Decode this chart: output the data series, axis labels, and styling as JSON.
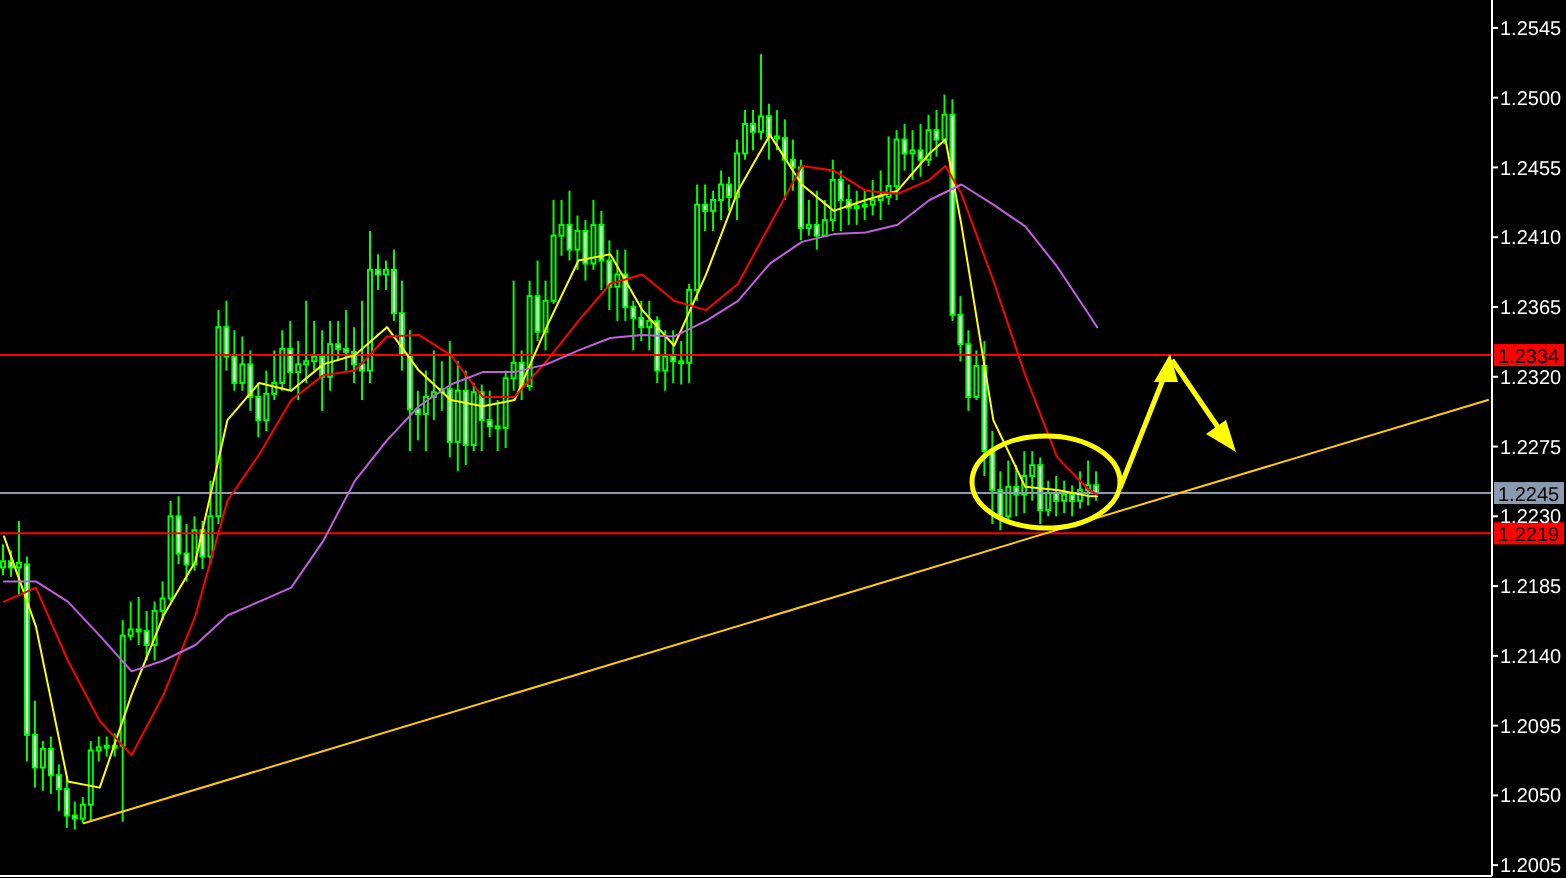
{
  "chart_data": {
    "type": "candlestick",
    "color": "#00ff00",
    "categories": [
      null,
      null,
      null,
      null,
      null,
      null,
      null,
      null,
      null,
      null,
      null,
      null,
      null,
      null,
      null,
      null,
      null,
      null,
      null,
      null,
      null,
      null,
      null,
      null,
      null,
      null,
      null,
      null,
      null,
      null,
      null,
      null,
      null,
      null,
      null,
      null,
      null,
      null,
      null,
      null,
      null,
      null,
      null,
      null,
      null,
      null,
      null,
      null,
      null,
      null,
      null,
      null,
      null,
      null,
      null,
      null,
      null,
      null,
      null,
      null,
      null,
      null,
      null,
      null,
      null,
      null,
      null,
      null,
      null,
      null,
      null,
      null,
      null,
      null,
      null,
      null,
      null,
      null,
      null,
      null,
      null,
      null,
      null,
      null,
      null,
      null,
      null,
      null,
      null,
      null,
      null,
      null,
      null,
      null,
      null,
      null,
      null,
      null,
      null,
      null,
      null,
      null,
      null,
      null,
      null,
      null,
      null,
      null,
      null,
      null,
      null,
      null,
      null,
      null,
      null,
      null,
      null,
      null,
      null,
      null,
      null,
      null,
      null,
      null,
      null,
      null,
      null,
      null,
      null,
      null,
      null,
      null,
      null,
      null,
      null,
      null,
      null,
      null,
      null,
      null,
      null,
      null,
      null,
      null,
      null,
      null,
      null,
      null,
      null,
      null,
      null,
      null,
      null,
      null,
      null,
      null,
      null,
      null,
      null,
      null,
      null,
      null,
      null,
      null,
      null,
      null,
      null,
      null,
      null,
      null,
      null,
      null,
      null,
      null,
      null,
      null,
      null,
      null,
      null,
      null,
      null,
      null,
      null,
      null,
      null,
      null,
      null
    ],
    "ohlc": [
      [
        1.2197,
        1.2212,
        1.2192,
        1.2201
      ],
      [
        1.2201,
        1.2208,
        1.2191,
        1.2197
      ],
      [
        1.2197,
        1.2227,
        1.2179,
        1.22
      ],
      [
        1.2199,
        1.2204,
        1.2072,
        1.2089
      ],
      [
        1.2089,
        1.2111,
        1.2055,
        1.2068
      ],
      [
        1.2068,
        1.2085,
        1.2053,
        1.208
      ],
      [
        1.208,
        1.2088,
        1.2051,
        1.2063
      ],
      [
        1.2063,
        1.207,
        1.204,
        1.2054
      ],
      [
        1.2054,
        1.2062,
        1.2029,
        1.2037
      ],
      [
        1.2037,
        1.2046,
        1.2028,
        1.2035
      ],
      [
        1.2035,
        1.2049,
        1.2032,
        1.2044
      ],
      [
        1.2044,
        1.2085,
        1.2033,
        1.2079
      ],
      [
        1.2079,
        1.2088,
        1.2072,
        1.2081
      ],
      [
        1.2081,
        1.2088,
        1.2075,
        1.2082
      ],
      [
        1.2082,
        1.209,
        1.2075,
        1.2082
      ],
      [
        1.2082,
        1.2163,
        1.2033,
        1.2153
      ],
      [
        1.2153,
        1.2175,
        1.215,
        1.2157
      ],
      [
        1.2157,
        1.2178,
        1.2147,
        1.2156
      ],
      [
        1.2156,
        1.2169,
        1.2137,
        1.2147
      ],
      [
        1.2147,
        1.2175,
        1.2137,
        1.2169
      ],
      [
        1.2169,
        1.2188,
        1.2163,
        1.2177
      ],
      [
        1.2177,
        1.224,
        1.2175,
        1.223
      ],
      [
        1.223,
        1.2243,
        1.2199,
        1.2206
      ],
      [
        1.2206,
        1.2225,
        1.2188,
        1.2199
      ],
      [
        1.2199,
        1.223,
        1.2195,
        1.2221
      ],
      [
        1.2221,
        1.2227,
        1.2196,
        1.2204
      ],
      [
        1.2204,
        1.2253,
        1.2199,
        1.223
      ],
      [
        1.223,
        1.2363,
        1.2225,
        1.2352
      ],
      [
        1.2352,
        1.2369,
        1.2324,
        1.2333
      ],
      [
        1.2333,
        1.235,
        1.2311,
        1.2316
      ],
      [
        1.2316,
        1.2346,
        1.2311,
        1.2328
      ],
      [
        1.2328,
        1.2337,
        1.2298,
        1.2307
      ],
      [
        1.2307,
        1.2316,
        1.2281,
        1.2292
      ],
      [
        1.2292,
        1.2324,
        1.2285,
        1.2309
      ],
      [
        1.2309,
        1.2337,
        1.2305,
        1.2316
      ],
      [
        1.2316,
        1.235,
        1.2311,
        1.2338
      ],
      [
        1.2338,
        1.2356,
        1.2311,
        1.2323
      ],
      [
        1.2323,
        1.2343,
        1.2305,
        1.2328
      ],
      [
        1.2328,
        1.2369,
        1.2316,
        1.233
      ],
      [
        1.233,
        1.2356,
        1.2324,
        1.2333
      ],
      [
        1.2333,
        1.235,
        1.2298,
        1.232
      ],
      [
        1.232,
        1.2356,
        1.2311,
        1.2341
      ],
      [
        1.2341,
        1.2356,
        1.233,
        1.2338
      ],
      [
        1.2338,
        1.2363,
        1.2324,
        1.2336
      ],
      [
        1.2336,
        1.2352,
        1.2316,
        1.2328
      ],
      [
        1.2328,
        1.2369,
        1.2305,
        1.2324
      ],
      [
        1.2324,
        1.2414,
        1.2316,
        1.2389
      ],
      [
        1.2389,
        1.2399,
        1.2376,
        1.2386
      ],
      [
        1.2386,
        1.2395,
        1.2376,
        1.2389
      ],
      [
        1.2389,
        1.2402,
        1.2356,
        1.2361
      ],
      [
        1.2361,
        1.2382,
        1.2324,
        1.2334
      ],
      [
        1.2334,
        1.235,
        1.2272,
        1.2299
      ],
      [
        1.2299,
        1.2311,
        1.2279,
        1.2296
      ],
      [
        1.2296,
        1.2324,
        1.2272,
        1.2307
      ],
      [
        1.2307,
        1.2337,
        1.2292,
        1.231
      ],
      [
        1.231,
        1.233,
        1.2298,
        1.2312
      ],
      [
        1.2312,
        1.2343,
        1.2268,
        1.2278
      ],
      [
        1.2278,
        1.233,
        1.2259,
        1.2311
      ],
      [
        1.2311,
        1.2324,
        1.2263,
        1.2276
      ],
      [
        1.2276,
        1.2316,
        1.2272,
        1.231
      ],
      [
        1.231,
        1.2315,
        1.2272,
        1.2292
      ],
      [
        1.2292,
        1.2311,
        1.2281,
        1.2288
      ],
      [
        1.2288,
        1.2305,
        1.2272,
        1.2287
      ],
      [
        1.2287,
        1.2324,
        1.2274,
        1.2319
      ],
      [
        1.2319,
        1.2382,
        1.2311,
        1.2329
      ],
      [
        1.2329,
        1.2337,
        1.2305,
        1.2314
      ],
      [
        1.2314,
        1.2382,
        1.2311,
        1.2372
      ],
      [
        1.2372,
        1.2395,
        1.2343,
        1.2349
      ],
      [
        1.2349,
        1.2382,
        1.2337,
        1.2369
      ],
      [
        1.2369,
        1.2434,
        1.2367,
        1.2411
      ],
      [
        1.2411,
        1.2434,
        1.2398,
        1.2418
      ],
      [
        1.2418,
        1.244,
        1.2395,
        1.2402
      ],
      [
        1.2402,
        1.2424,
        1.2389,
        1.2414
      ],
      [
        1.2414,
        1.2421,
        1.2382,
        1.2393
      ],
      [
        1.2393,
        1.2434,
        1.2389,
        1.2418
      ],
      [
        1.2418,
        1.2427,
        1.2376,
        1.2395
      ],
      [
        1.2395,
        1.2408,
        1.2363,
        1.2378
      ],
      [
        1.2378,
        1.2402,
        1.2356,
        1.2386
      ],
      [
        1.2386,
        1.2402,
        1.2356,
        1.2365
      ],
      [
        1.2365,
        1.2369,
        1.2337,
        1.2358
      ],
      [
        1.2358,
        1.2369,
        1.2343,
        1.2352
      ],
      [
        1.2352,
        1.2369,
        1.2337,
        1.2356
      ],
      [
        1.2356,
        1.2359,
        1.2316,
        1.2324
      ],
      [
        1.2324,
        1.235,
        1.2311,
        1.2333
      ],
      [
        1.2333,
        1.235,
        1.2316,
        1.233
      ],
      [
        1.233,
        1.2343,
        1.2315,
        1.2329
      ],
      [
        1.2329,
        1.238,
        1.2316,
        1.2376
      ],
      [
        1.2376,
        1.2444,
        1.2369,
        1.2431
      ],
      [
        1.2431,
        1.2444,
        1.2414,
        1.2427
      ],
      [
        1.2427,
        1.244,
        1.2414,
        1.2434
      ],
      [
        1.2434,
        1.2453,
        1.2421,
        1.2444
      ],
      [
        1.2444,
        1.2449,
        1.2427,
        1.2436
      ],
      [
        1.2436,
        1.2473,
        1.2421,
        1.2464
      ],
      [
        1.2464,
        1.2492,
        1.246,
        1.2483
      ],
      [
        1.2483,
        1.2492,
        1.2466,
        1.2478
      ],
      [
        1.2478,
        1.2528,
        1.2473,
        1.2488
      ],
      [
        1.2488,
        1.2496,
        1.246,
        1.2475
      ],
      [
        1.2475,
        1.2492,
        1.2466,
        1.2474
      ],
      [
        1.2474,
        1.2486,
        1.2434,
        1.246
      ],
      [
        1.246,
        1.2473,
        1.244,
        1.2455
      ],
      [
        1.2455,
        1.246,
        1.2408,
        1.2416
      ],
      [
        1.2416,
        1.2434,
        1.2411,
        1.2418
      ],
      [
        1.2418,
        1.244,
        1.2402,
        1.2411
      ],
      [
        1.2411,
        1.2434,
        1.2411,
        1.2421
      ],
      [
        1.2421,
        1.246,
        1.2414,
        1.2447
      ],
      [
        1.2447,
        1.2453,
        1.2414,
        1.2434
      ],
      [
        1.2434,
        1.2444,
        1.2418,
        1.2429
      ],
      [
        1.2429,
        1.244,
        1.2418,
        1.243
      ],
      [
        1.243,
        1.244,
        1.2421,
        1.2431
      ],
      [
        1.2431,
        1.2447,
        1.2424,
        1.2434
      ],
      [
        1.2434,
        1.2453,
        1.2421,
        1.2436
      ],
      [
        1.2436,
        1.2475,
        1.2431,
        1.2443
      ],
      [
        1.2443,
        1.2479,
        1.2434,
        1.2473
      ],
      [
        1.2473,
        1.2483,
        1.2453,
        1.2464
      ],
      [
        1.2464,
        1.2479,
        1.2447,
        1.2466
      ],
      [
        1.2466,
        1.2483,
        1.2449,
        1.246
      ],
      [
        1.246,
        1.2489,
        1.2456,
        1.2479
      ],
      [
        1.2479,
        1.2492,
        1.2462,
        1.2473
      ],
      [
        1.2473,
        1.2502,
        1.247,
        1.2489
      ],
      [
        1.2489,
        1.2499,
        1.2356,
        1.236
      ],
      [
        1.236,
        1.2372,
        1.233,
        1.2341
      ],
      [
        1.2341,
        1.235,
        1.2298,
        1.2307
      ],
      [
        1.2307,
        1.2337,
        1.2305,
        1.2327
      ],
      [
        1.2327,
        1.2343,
        1.2256,
        1.2272
      ],
      [
        1.2272,
        1.2285,
        1.2225,
        1.2247
      ],
      [
        1.2247,
        1.2259,
        1.2221,
        1.223
      ],
      [
        1.223,
        1.2266,
        1.2225,
        1.2249
      ],
      [
        1.2249,
        1.2263,
        1.223,
        1.2244
      ],
      [
        1.2244,
        1.2272,
        1.2232,
        1.2256
      ],
      [
        1.2256,
        1.2272,
        1.224,
        1.2263
      ],
      [
        1.2263,
        1.2268,
        1.2225,
        1.2234
      ],
      [
        1.2234,
        1.2253,
        1.223,
        1.2245
      ],
      [
        1.2245,
        1.2256,
        1.223,
        1.224
      ],
      [
        1.224,
        1.2253,
        1.2232,
        1.2244
      ],
      [
        1.2244,
        1.225,
        1.223,
        1.224
      ],
      [
        1.224,
        1.2259,
        1.2235,
        1.2247
      ],
      [
        1.2247,
        1.2266,
        1.2237,
        1.225
      ],
      [
        1.225,
        1.2259,
        1.224,
        1.2245
      ],
      null,
      null,
      null,
      null,
      null,
      null,
      null,
      null,
      null,
      null,
      null,
      null,
      null,
      null,
      null,
      null,
      null,
      null,
      null,
      null,
      null,
      null,
      null,
      null,
      null,
      null,
      null,
      null,
      null,
      null,
      null,
      null,
      null,
      null,
      null,
      null,
      null,
      null,
      null,
      null,
      null,
      null,
      null,
      null,
      null,
      null,
      null,
      null,
      null
    ],
    "series": [
      {
        "type": "line",
        "color": "#ffff00",
        "values": [
          1.2217,
          null,
          null,
          null,
          1.2159,
          null,
          null,
          null,
          1.2059,
          null,
          null,
          null,
          1.2055,
          null,
          null,
          null,
          1.2115,
          null,
          null,
          null,
          1.2166,
          null,
          null,
          null,
          1.2201,
          null,
          null,
          null,
          1.2292,
          null,
          null,
          null,
          1.2316,
          null,
          null,
          null,
          1.2311,
          null,
          null,
          null,
          1.2328,
          null,
          null,
          null,
          1.2334,
          null,
          null,
          null,
          1.2352,
          null,
          null,
          null,
          1.2324,
          null,
          null,
          null,
          1.2305,
          null,
          null,
          null,
          1.2301,
          null,
          null,
          null,
          1.2305,
          null,
          null,
          null,
          1.2352,
          null,
          null,
          null,
          1.2395,
          null,
          null,
          null,
          1.2399,
          null,
          null,
          null,
          1.2363,
          null,
          null,
          null,
          1.234,
          null,
          null,
          null,
          1.2386,
          null,
          null,
          null,
          1.244,
          null,
          null,
          null,
          1.2476,
          null,
          null,
          null,
          1.2444,
          null,
          null,
          null,
          1.2427,
          null,
          null,
          null,
          1.2434,
          null,
          null,
          null,
          1.244,
          null,
          null,
          null,
          1.2464,
          null,
          1.2473,
          null,
          1.2418,
          null,
          null,
          null,
          1.2292,
          null,
          null,
          null,
          1.2249,
          null,
          null,
          null,
          1.2247,
          null,
          null,
          null,
          1.2243,
          1.2243,
          null,
          null,
          null,
          null,
          null,
          null,
          null,
          null,
          null,
          null,
          null,
          null,
          null,
          null,
          null,
          null,
          null,
          null,
          null,
          null,
          null,
          null,
          null,
          null,
          null,
          null,
          null,
          null,
          null,
          null,
          null,
          null,
          null,
          null,
          null,
          null,
          null,
          null,
          null,
          null,
          null,
          null,
          null,
          null,
          null,
          null,
          null,
          null,
          null
        ]
      },
      {
        "type": "line",
        "color": "#ff0000",
        "values": [
          1.2175,
          null,
          null,
          null,
          1.2184,
          null,
          null,
          null,
          1.2137,
          null,
          null,
          null,
          1.2098,
          null,
          null,
          null,
          1.2076,
          null,
          null,
          null,
          1.2115,
          null,
          null,
          null,
          1.2166,
          null,
          null,
          null,
          1.224,
          null,
          null,
          null,
          1.227,
          null,
          null,
          null,
          1.2305,
          null,
          null,
          null,
          1.2321,
          null,
          null,
          null,
          1.2324,
          null,
          null,
          null,
          1.2346,
          null,
          null,
          null,
          1.2347,
          null,
          null,
          null,
          1.2334,
          null,
          null,
          null,
          1.2307,
          null,
          null,
          null,
          1.2307,
          null,
          null,
          null,
          1.233,
          null,
          null,
          null,
          1.2356,
          null,
          null,
          null,
          1.238,
          null,
          null,
          null,
          1.2386,
          null,
          null,
          null,
          1.2369,
          null,
          null,
          null,
          1.2363,
          null,
          null,
          null,
          1.238,
          null,
          null,
          null,
          1.2418,
          null,
          null,
          null,
          1.2456,
          null,
          null,
          null,
          1.2453,
          null,
          null,
          null,
          1.244,
          null,
          null,
          null,
          1.2438,
          null,
          null,
          null,
          1.2447,
          null,
          1.2456,
          null,
          1.2438,
          null,
          null,
          null,
          1.2382,
          null,
          null,
          null,
          1.2321,
          null,
          null,
          null,
          1.2268,
          null,
          null,
          null,
          1.2247,
          1.2244,
          null,
          null,
          null,
          null,
          null,
          null,
          null,
          null,
          null,
          null,
          null,
          null,
          null,
          null,
          null,
          null,
          null,
          null,
          null,
          null,
          null,
          null,
          null,
          null,
          null,
          null,
          null,
          null,
          null,
          null,
          null,
          null,
          null,
          null,
          null,
          null,
          null,
          null,
          null,
          null,
          null,
          null,
          null,
          null,
          null,
          null,
          null,
          null,
          null
        ]
      },
      {
        "type": "line",
        "color": "#c060e0",
        "values": [
          1.2188,
          null,
          null,
          null,
          1.2188,
          null,
          null,
          null,
          1.2175,
          null,
          null,
          null,
          1.2153,
          null,
          null,
          null,
          1.213,
          null,
          null,
          null,
          1.2137,
          null,
          null,
          null,
          1.2147,
          null,
          null,
          null,
          1.2166,
          null,
          null,
          null,
          1.2175,
          null,
          null,
          null,
          1.2184,
          null,
          null,
          null,
          1.2214,
          null,
          null,
          null,
          1.2253,
          null,
          null,
          null,
          1.2279,
          null,
          null,
          null,
          1.2301,
          null,
          null,
          null,
          1.2315,
          null,
          null,
          null,
          1.2323,
          null,
          null,
          null,
          1.2323,
          null,
          null,
          null,
          1.2328,
          null,
          null,
          null,
          1.2337,
          null,
          null,
          null,
          1.2345,
          null,
          null,
          null,
          1.2347,
          null,
          null,
          null,
          1.2346,
          null,
          null,
          null,
          1.2356,
          null,
          null,
          null,
          1.2369,
          null,
          null,
          null,
          1.2393,
          null,
          null,
          null,
          1.2407,
          null,
          null,
          null,
          1.2412,
          null,
          null,
          null,
          1.2413,
          null,
          null,
          null,
          1.2418,
          null,
          null,
          null,
          1.2434,
          null,
          null,
          null,
          1.2444,
          null,
          null,
          null,
          1.2431,
          null,
          null,
          null,
          1.2417,
          null,
          null,
          null,
          1.2391,
          null,
          null,
          null,
          1.236,
          1.2352,
          null,
          null,
          null,
          null,
          null,
          null,
          null,
          null,
          null,
          null,
          null,
          null,
          null,
          null,
          null,
          null,
          null,
          null,
          null,
          null,
          null,
          null,
          null,
          null,
          null,
          null,
          null,
          null,
          null,
          null,
          null,
          null,
          null,
          null,
          null,
          null,
          null,
          null,
          null,
          null,
          null,
          null,
          null,
          null,
          null,
          null,
          null,
          null,
          null
        ]
      },
      {
        "type": "line",
        "color": "#ffcc00",
        "values": [
          null,
          null,
          null,
          null,
          null,
          null,
          null,
          null,
          null,
          null,
          1.2032,
          null,
          null,
          null,
          null,
          null,
          null,
          null,
          null,
          null,
          null,
          null,
          null,
          null,
          null,
          null,
          null,
          null,
          null,
          null,
          null,
          null,
          null,
          null,
          null,
          null,
          null,
          null,
          null,
          null,
          null,
          null,
          null,
          null,
          null,
          null,
          null,
          null,
          null,
          null,
          null,
          null,
          null,
          null,
          null,
          null,
          null,
          null,
          null,
          null,
          null,
          null,
          null,
          null,
          null,
          null,
          null,
          null,
          null,
          null,
          null,
          null,
          null,
          null,
          null,
          null,
          null,
          null,
          null,
          null,
          null,
          null,
          null,
          null,
          null,
          null,
          null,
          null,
          null,
          null,
          null,
          null,
          null,
          null,
          null,
          null,
          null,
          null,
          null,
          null,
          null,
          null,
          null,
          null,
          null,
          null,
          null,
          null,
          null,
          null,
          null,
          null,
          null,
          null,
          null,
          null,
          null,
          null,
          null,
          null,
          null,
          null,
          null,
          null,
          null,
          null,
          null,
          null,
          null,
          null,
          null,
          null,
          null,
          null,
          null,
          null,
          null,
          null,
          null,
          null,
          null,
          null,
          null,
          null,
          null,
          null,
          null,
          null,
          null,
          null,
          null,
          null,
          null,
          null,
          null,
          null,
          null,
          null,
          null,
          null,
          null,
          null,
          null,
          null,
          null,
          null,
          null,
          null,
          null,
          null,
          null,
          null,
          null,
          null,
          null,
          null,
          null,
          null,
          null,
          null,
          null,
          null,
          null,
          null,
          null,
          null,
          1.2305
        ]
      }
    ],
    "ylim": [
      1.1998,
      1.2563
    ],
    "yticks": [
      1.2005,
      {
        "value": 1.205,
        "label": "1.2050"
      },
      1.2095,
      {
        "value": 1.214,
        "label": "1.2140"
      },
      1.2185,
      {
        "value": 1.223,
        "label": "1.2230"
      },
      1.2275,
      {
        "value": 1.232,
        "label": "1.2320"
      },
      1.2365,
      {
        "value": 1.241,
        "label": "1.2410"
      },
      1.2455,
      {
        "value": 1.25,
        "label": "1.2500"
      },
      1.2545
    ],
    "ref_lines": [
      {
        "axis": "y",
        "value": 1.2334,
        "label": "1.2334",
        "color": "#ff0000"
      },
      {
        "axis": "y",
        "value": 1.2245,
        "label": "1.2245",
        "color": "#8a9bb0"
      },
      {
        "axis": "y",
        "value": 1.2219,
        "label": "1.2219",
        "color": "#ff0000"
      }
    ],
    "tick_labels": "y"
  }
}
